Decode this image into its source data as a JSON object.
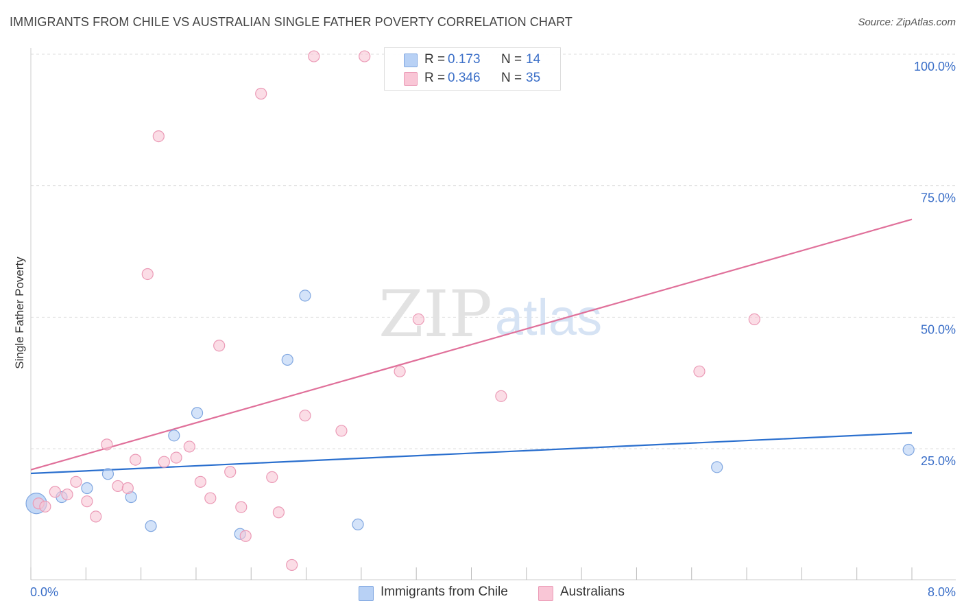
{
  "header": {
    "title": "IMMIGRANTS FROM CHILE VS AUSTRALIAN SINGLE FATHER POVERTY CORRELATION CHART",
    "source": "Source: ZipAtlas.com"
  },
  "watermark": {
    "zip": "ZIP",
    "atlas": "atlas"
  },
  "legend": {
    "rows": [
      {
        "r_label": "R =",
        "r_value": "0.173",
        "n_label": "N =",
        "n_value": "14"
      },
      {
        "r_label": "R =",
        "r_value": "0.346",
        "n_label": "N =",
        "n_value": "35"
      }
    ]
  },
  "bottom_legend": {
    "series1": "Immigrants from Chile",
    "series2": "Australians"
  },
  "colors": {
    "series1_fill": "#b8d1f5",
    "series1_stroke": "#7fa6e0",
    "series1_line": "#2a6fce",
    "series2_fill": "#f9c6d6",
    "series2_stroke": "#eb9ab6",
    "series2_line": "#e0709a",
    "axis_label": "#3b6fc8",
    "grid": "#dddddd"
  },
  "chart_data": {
    "type": "scatter",
    "title": "IMMIGRANTS FROM CHILE VS AUSTRALIAN SINGLE FATHER POVERTY CORRELATION CHART",
    "xlabel": "",
    "ylabel": "Single Father Poverty",
    "xlim": [
      0,
      8
    ],
    "ylim": [
      0,
      102
    ],
    "x_tick_labels": {
      "left": "0.0%",
      "right": "8.0%"
    },
    "y_ticks": [
      {
        "value": 25,
        "label": "25.0%"
      },
      {
        "value": 50,
        "label": "50.0%"
      },
      {
        "value": 75,
        "label": "75.0%"
      },
      {
        "value": 100,
        "label": "100.0%"
      }
    ],
    "series": [
      {
        "name": "Immigrants from Chile",
        "R": 0.173,
        "N": 14,
        "trendline": {
          "x": [
            0,
            8
          ],
          "y": [
            20.3,
            28.0
          ]
        },
        "points": [
          {
            "x": 0.05,
            "y": 14.6,
            "big": true
          },
          {
            "x": 0.28,
            "y": 15.8
          },
          {
            "x": 0.51,
            "y": 17.5
          },
          {
            "x": 0.7,
            "y": 20.2
          },
          {
            "x": 0.91,
            "y": 15.8
          },
          {
            "x": 1.09,
            "y": 10.3
          },
          {
            "x": 1.3,
            "y": 27.5
          },
          {
            "x": 1.51,
            "y": 31.8
          },
          {
            "x": 1.9,
            "y": 8.8
          },
          {
            "x": 2.33,
            "y": 41.9
          },
          {
            "x": 2.49,
            "y": 54.1
          },
          {
            "x": 2.97,
            "y": 10.6
          },
          {
            "x": 6.23,
            "y": 21.5
          },
          {
            "x": 7.97,
            "y": 24.8
          }
        ]
      },
      {
        "name": "Australians",
        "R": 0.346,
        "N": 35,
        "trendline": {
          "x": [
            0,
            8
          ],
          "y": [
            21.0,
            68.6
          ]
        },
        "points": [
          {
            "x": 0.07,
            "y": 14.6
          },
          {
            "x": 0.13,
            "y": 14.0
          },
          {
            "x": 0.22,
            "y": 16.8
          },
          {
            "x": 0.33,
            "y": 16.3
          },
          {
            "x": 0.41,
            "y": 18.7
          },
          {
            "x": 0.51,
            "y": 15.0
          },
          {
            "x": 0.59,
            "y": 12.1
          },
          {
            "x": 0.69,
            "y": 25.8
          },
          {
            "x": 0.79,
            "y": 17.9
          },
          {
            "x": 0.88,
            "y": 17.5
          },
          {
            "x": 0.95,
            "y": 22.9
          },
          {
            "x": 1.06,
            "y": 58.2
          },
          {
            "x": 1.16,
            "y": 84.4
          },
          {
            "x": 1.21,
            "y": 22.5
          },
          {
            "x": 1.32,
            "y": 23.3
          },
          {
            "x": 1.44,
            "y": 25.4
          },
          {
            "x": 1.54,
            "y": 18.7
          },
          {
            "x": 1.63,
            "y": 15.6
          },
          {
            "x": 1.71,
            "y": 44.6
          },
          {
            "x": 1.81,
            "y": 20.6
          },
          {
            "x": 1.91,
            "y": 13.9
          },
          {
            "x": 1.95,
            "y": 8.4
          },
          {
            "x": 2.09,
            "y": 92.5
          },
          {
            "x": 2.19,
            "y": 19.6
          },
          {
            "x": 2.25,
            "y": 12.9
          },
          {
            "x": 2.37,
            "y": 2.9
          },
          {
            "x": 2.49,
            "y": 31.3
          },
          {
            "x": 2.57,
            "y": 99.6
          },
          {
            "x": 2.82,
            "y": 28.4
          },
          {
            "x": 3.03,
            "y": 99.6
          },
          {
            "x": 3.35,
            "y": 39.7
          },
          {
            "x": 3.52,
            "y": 49.6
          },
          {
            "x": 4.27,
            "y": 35.0
          },
          {
            "x": 6.07,
            "y": 39.7
          },
          {
            "x": 6.57,
            "y": 49.6
          }
        ]
      }
    ]
  }
}
